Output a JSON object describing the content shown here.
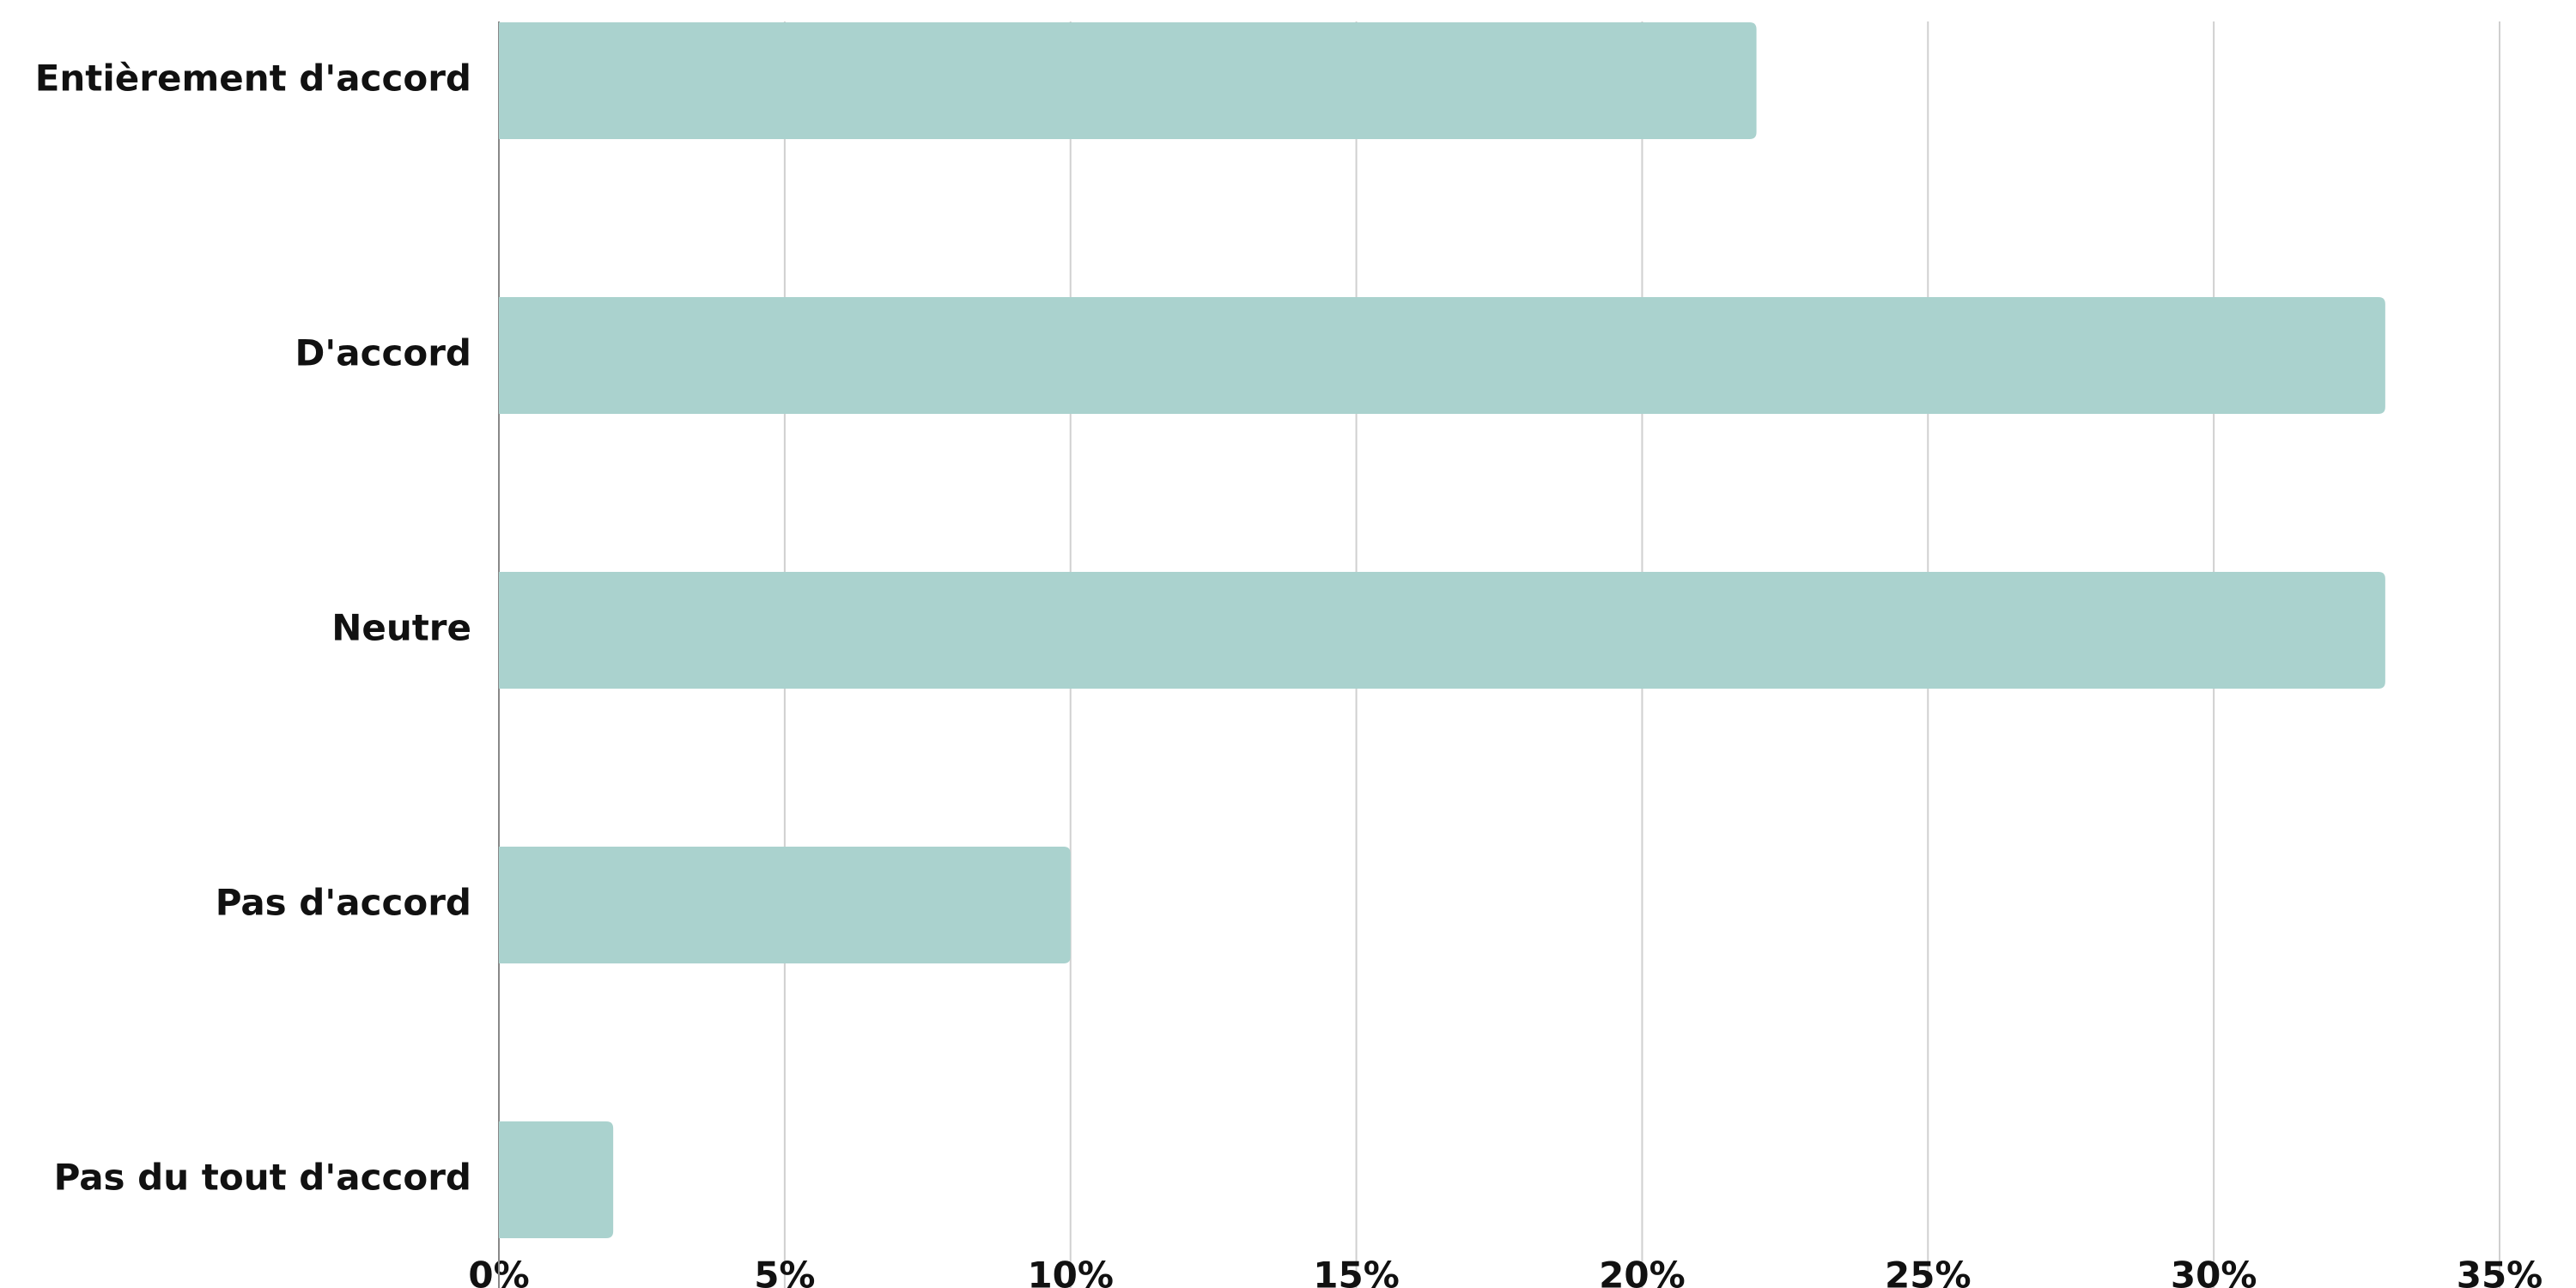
{
  "chart_data": {
    "type": "bar",
    "orientation": "horizontal",
    "categories": [
      "Entièrement d'accord",
      "D'accord",
      "Neutre",
      "Pas d'accord",
      "Pas du tout d'accord"
    ],
    "values": [
      22,
      33,
      33,
      10,
      2
    ],
    "color": "#aad2ce",
    "xlim": [
      0,
      35
    ],
    "xticks": [
      {
        "value": 0,
        "label": "0%"
      },
      {
        "value": 5,
        "label": "5%"
      },
      {
        "value": 10,
        "label": "10%"
      },
      {
        "value": 15,
        "label": "15%"
      },
      {
        "value": 20,
        "label": "20%"
      },
      {
        "value": 25,
        "label": "25%"
      },
      {
        "value": 30,
        "label": "30%"
      },
      {
        "value": 35,
        "label": "35%"
      }
    ],
    "grid": true
  }
}
